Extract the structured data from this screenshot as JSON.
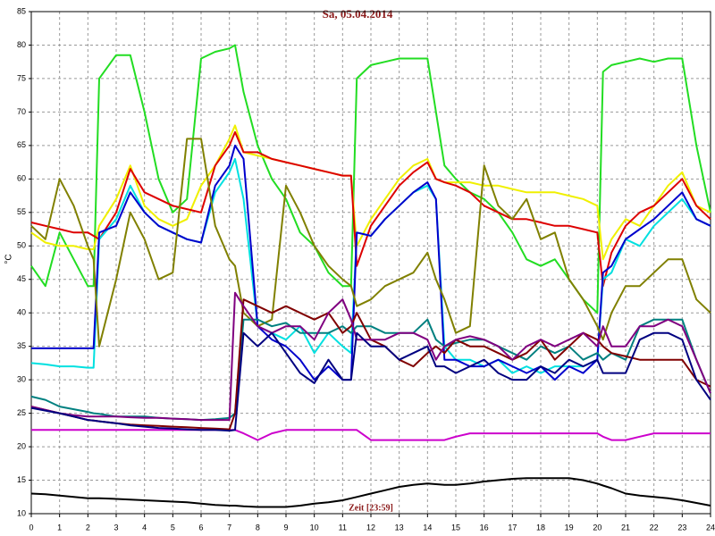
{
  "chart_data": {
    "type": "line",
    "title": "Sa, 05.04.2014",
    "ylabel": "°C",
    "xlabel": "Zeit [23:59]",
    "x": [
      0,
      0.5,
      1,
      1.5,
      2,
      2.2,
      2.4,
      3,
      3.5,
      4,
      4.5,
      5,
      5.5,
      6,
      6.5,
      7,
      7.2,
      7.5,
      8,
      8.5,
      9,
      9.5,
      10,
      10.5,
      11,
      11.3,
      11.5,
      12,
      12.5,
      13,
      13.5,
      14,
      14.3,
      14.6,
      15,
      15.5,
      16,
      16.5,
      17,
      17.5,
      18,
      18.5,
      19,
      19.5,
      20,
      20.2,
      20.5,
      21,
      21.5,
      22,
      22.5,
      23,
      23.5,
      24
    ],
    "xlim": [
      0,
      24
    ],
    "xticks": [
      0,
      1,
      2,
      3,
      4,
      5,
      6,
      7,
      8,
      9,
      10,
      11,
      12,
      13,
      14,
      15,
      16,
      17,
      18,
      19,
      20,
      21,
      22,
      23,
      24
    ],
    "ylim": [
      10,
      85
    ],
    "yticks": [
      10,
      15,
      20,
      25,
      30,
      35,
      40,
      45,
      50,
      55,
      60,
      65,
      70,
      75,
      80,
      85
    ],
    "grid": true,
    "series": [
      {
        "color": "#22dd22",
        "values": [
          47,
          44,
          52,
          48,
          44,
          44,
          75,
          78.5,
          78.5,
          70,
          60,
          55,
          57,
          78,
          79,
          79.5,
          80,
          73,
          65,
          60,
          57,
          52,
          50,
          46,
          44,
          44,
          75,
          77,
          77.5,
          78,
          78,
          78,
          70,
          62,
          60,
          58,
          57,
          55,
          52,
          48,
          47,
          48,
          45,
          42,
          40,
          76,
          77,
          77.5,
          78,
          77.5,
          78,
          78,
          65,
          55
        ]
      },
      {
        "color": "#f0f000",
        "values": [
          52,
          50.5,
          50,
          50,
          49.5,
          49.5,
          53,
          57,
          62,
          56,
          54,
          53,
          54,
          59,
          62,
          66,
          68,
          64,
          63.5,
          63,
          62.5,
          62,
          61.5,
          61,
          60.5,
          60.5,
          50,
          54,
          57,
          60,
          62,
          63,
          60,
          59.5,
          59.5,
          59.5,
          59,
          59,
          58.5,
          58,
          58,
          58,
          57.5,
          57,
          56,
          48,
          51,
          54,
          53,
          56,
          59,
          61,
          56,
          55
        ]
      },
      {
        "color": "#dd0000",
        "values": [
          53.5,
          53,
          52.5,
          52,
          52,
          51.5,
          51,
          55,
          61.5,
          58,
          57,
          56,
          55.5,
          55,
          62,
          65,
          67,
          64,
          64,
          63,
          62.5,
          62,
          61.5,
          61,
          60.5,
          60.5,
          47,
          53,
          56,
          59,
          61,
          62.5,
          60,
          59.5,
          59,
          58,
          56,
          55,
          54,
          54,
          53.5,
          53,
          53,
          52.5,
          52,
          44,
          49,
          53,
          55,
          56,
          58,
          60,
          56,
          54
        ]
      },
      {
        "color": "#00e0e0",
        "values": [
          32.5,
          32.3,
          32,
          32,
          31.8,
          31.8,
          51,
          54,
          59,
          55,
          53,
          52,
          51,
          50.5,
          58,
          61,
          63,
          57,
          38,
          37,
          36,
          38,
          34,
          37,
          35,
          34,
          52,
          51.5,
          54,
          56,
          58,
          59,
          57,
          35,
          33,
          33,
          32,
          33,
          31,
          32,
          31,
          32,
          32,
          32,
          33,
          45,
          46,
          51,
          50,
          53,
          55,
          57,
          54,
          53
        ]
      },
      {
        "color": "#0000cc",
        "values": [
          34.7,
          34.7,
          34.7,
          34.7,
          34.7,
          34.7,
          52,
          53,
          58,
          55,
          53,
          52,
          51,
          50.5,
          59,
          62,
          65,
          63,
          38,
          36,
          35,
          33,
          30,
          32,
          30,
          30,
          52,
          51.5,
          54,
          56,
          58,
          59.5,
          57,
          33,
          33,
          32,
          32,
          33,
          32,
          31,
          32,
          30,
          32,
          31,
          33,
          46,
          47,
          51,
          52.5,
          54,
          56,
          58,
          54,
          53
        ]
      },
      {
        "color": "#808000",
        "values": [
          53,
          51,
          60,
          56,
          50,
          48,
          35,
          45,
          55,
          51,
          45,
          46,
          66,
          66,
          53,
          48,
          47,
          40,
          38,
          39,
          59,
          55,
          50,
          47,
          45,
          44,
          41,
          42,
          44,
          45,
          46,
          49,
          45,
          42,
          37,
          38,
          62,
          56,
          54,
          57,
          51,
          52,
          45,
          42,
          38,
          36,
          40,
          44,
          44,
          46,
          48,
          48,
          42,
          40
        ]
      },
      {
        "color": "#cc00cc",
        "values": [
          22.5,
          22.5,
          22.5,
          22.5,
          22.5,
          22.5,
          22.5,
          22.5,
          22.5,
          22.5,
          22.5,
          22.5,
          22.5,
          22.5,
          22.5,
          22.5,
          22.5,
          22,
          21,
          22,
          22.5,
          22.5,
          22.5,
          22.5,
          22.5,
          22.5,
          22.5,
          21,
          21,
          21,
          21,
          21,
          21,
          21,
          21.5,
          22,
          22,
          22,
          22,
          22,
          22,
          22,
          22,
          22,
          22,
          21.5,
          21,
          21,
          21.5,
          22,
          22,
          22,
          22,
          22
        ]
      },
      {
        "color": "#000000",
        "values": [
          13,
          12.9,
          12.7,
          12.5,
          12.3,
          12.3,
          12.3,
          12.2,
          12.1,
          12,
          11.9,
          11.8,
          11.7,
          11.5,
          11.3,
          11.2,
          11.2,
          11.1,
          11,
          11,
          11,
          11.2,
          11.5,
          11.7,
          12,
          12.3,
          12.5,
          13,
          13.5,
          14,
          14.3,
          14.5,
          14.4,
          14.3,
          14.3,
          14.5,
          14.8,
          15,
          15.2,
          15.3,
          15.3,
          15.3,
          15.3,
          15,
          14.5,
          14.2,
          13.8,
          13,
          12.7,
          12.5,
          12.3,
          12,
          11.6,
          11.2
        ]
      },
      {
        "color": "#008080",
        "values": [
          27.5,
          27,
          26,
          25.6,
          25.2,
          25,
          24.9,
          24.5,
          24.5,
          24.5,
          24.3,
          24.2,
          24.1,
          24,
          24.1,
          24.3,
          25,
          39,
          39,
          38,
          38.5,
          37,
          37,
          37,
          38,
          37,
          38,
          38,
          37,
          37,
          37,
          39,
          36,
          35,
          35.5,
          36,
          36,
          35,
          34,
          33,
          35,
          34,
          35,
          33,
          34,
          33,
          34,
          33,
          38,
          39,
          39,
          39,
          33,
          28
        ]
      },
      {
        "color": "#800000",
        "values": [
          26,
          25.5,
          25,
          24.5,
          24,
          23.9,
          23.8,
          23.5,
          23.3,
          23.2,
          23.1,
          23,
          22.9,
          22.8,
          22.7,
          22.6,
          25,
          42,
          41,
          40,
          41,
          40,
          39,
          40,
          37,
          38,
          40,
          36,
          35,
          33,
          32,
          34,
          35,
          34,
          36,
          35,
          35,
          34,
          33,
          34,
          36,
          33,
          35,
          37,
          36,
          35,
          34,
          33.5,
          33,
          33,
          33,
          33,
          30,
          29
        ]
      },
      {
        "color": "#800080",
        "values": [
          26,
          25.5,
          25,
          24.7,
          24.5,
          24.5,
          24.5,
          24.5,
          24.4,
          24.3,
          24.3,
          24.2,
          24.1,
          24,
          24,
          24,
          43,
          41,
          38,
          37,
          38,
          38,
          36,
          40,
          42,
          39,
          36,
          36,
          36,
          37,
          37,
          36,
          33,
          35,
          36,
          36.5,
          36,
          35,
          33,
          35,
          36,
          35,
          36,
          37,
          35,
          38,
          35,
          35,
          38,
          38,
          39,
          38,
          33,
          28
        ]
      },
      {
        "color": "#000080",
        "values": [
          25.8,
          25.4,
          25,
          24.5,
          24,
          23.9,
          23.8,
          23.5,
          23.2,
          23,
          22.8,
          22.7,
          22.6,
          22.5,
          22.5,
          22.4,
          22.5,
          37,
          35,
          37,
          34,
          31,
          29.5,
          33,
          30,
          30,
          37,
          35,
          35,
          33,
          34,
          35,
          32,
          32,
          31,
          32,
          33,
          31,
          30,
          30,
          32,
          31,
          33,
          32,
          33,
          31,
          31,
          31,
          36,
          37,
          37,
          36,
          30,
          27
        ]
      }
    ]
  }
}
